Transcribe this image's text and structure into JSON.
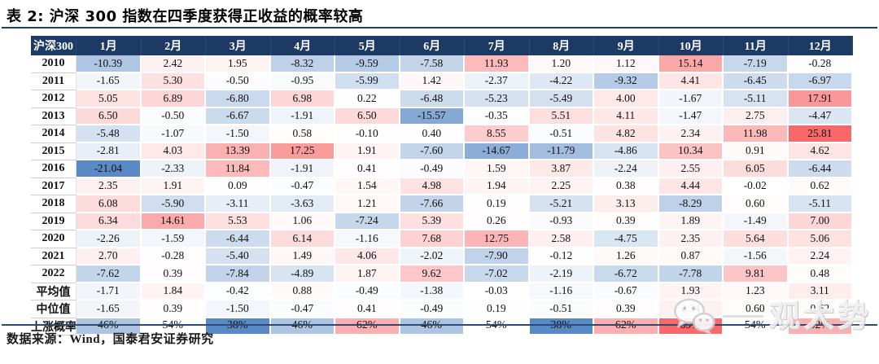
{
  "title": "表 2: 沪深 300 指数在四季度获得正收益的概率较高",
  "chart_data": {
    "type": "heatmap",
    "title": "表 2: 沪深 300 指数在四季度获得正收益的概率较高",
    "corner_label": "沪深300",
    "columns": [
      "1月",
      "2月",
      "3月",
      "4月",
      "5月",
      "6月",
      "7月",
      "8月",
      "9月",
      "10月",
      "11月",
      "12月"
    ],
    "rows": [
      {
        "label": "2010",
        "values": [
          -10.39,
          2.42,
          1.95,
          -8.32,
          -9.59,
          -7.58,
          11.93,
          1.2,
          1.12,
          15.14,
          -7.19,
          -0.28
        ]
      },
      {
        "label": "2011",
        "values": [
          -1.65,
          5.3,
          -0.5,
          -0.95,
          -5.99,
          1.42,
          -2.37,
          -4.22,
          -9.32,
          4.41,
          -6.45,
          -6.97
        ]
      },
      {
        "label": "2012",
        "values": [
          5.05,
          6.89,
          -6.8,
          6.98,
          0.22,
          -6.48,
          -5.23,
          -5.49,
          4.0,
          -1.67,
          -5.11,
          17.91
        ]
      },
      {
        "label": "2013",
        "values": [
          6.5,
          -0.5,
          -6.67,
          -1.91,
          6.5,
          -15.57,
          -0.35,
          5.51,
          4.11,
          -1.47,
          2.75,
          -4.47
        ]
      },
      {
        "label": "2014",
        "values": [
          -5.48,
          -1.07,
          -1.5,
          0.58,
          -0.1,
          0.4,
          8.55,
          -0.51,
          4.82,
          2.34,
          11.98,
          25.81
        ]
      },
      {
        "label": "2015",
        "values": [
          -2.81,
          4.03,
          13.39,
          17.25,
          1.91,
          -7.6,
          -14.67,
          -11.79,
          -4.86,
          10.34,
          0.91,
          4.62
        ]
      },
      {
        "label": "2016",
        "values": [
          -21.04,
          -2.33,
          11.84,
          -1.91,
          0.41,
          -0.49,
          1.59,
          3.87,
          -2.24,
          2.55,
          6.05,
          -6.44
        ]
      },
      {
        "label": "2017",
        "values": [
          2.35,
          1.91,
          0.09,
          -0.47,
          1.54,
          4.98,
          1.94,
          2.25,
          0.38,
          4.44,
          -0.02,
          0.62
        ]
      },
      {
        "label": "2018",
        "values": [
          6.08,
          -5.9,
          -3.11,
          -3.63,
          1.21,
          -7.66,
          0.19,
          -5.21,
          3.13,
          -8.29,
          0.6,
          -5.11
        ]
      },
      {
        "label": "2019",
        "values": [
          6.34,
          14.61,
          5.53,
          1.06,
          -7.24,
          5.39,
          0.26,
          -0.93,
          0.39,
          1.89,
          -1.49,
          7.0
        ]
      },
      {
        "label": "2020",
        "values": [
          -2.26,
          -1.59,
          -6.44,
          6.14,
          -1.16,
          7.68,
          12.75,
          2.58,
          -4.75,
          2.35,
          5.64,
          5.06
        ]
      },
      {
        "label": "2021",
        "values": [
          2.7,
          -0.28,
          -5.4,
          1.49,
          4.06,
          -2.02,
          -7.9,
          -0.12,
          1.26,
          0.87,
          -1.56,
          2.24
        ]
      },
      {
        "label": "2022",
        "values": [
          -7.62,
          0.39,
          -7.84,
          -4.89,
          1.87,
          9.62,
          -7.02,
          -2.19,
          -6.72,
          -7.78,
          9.81,
          0.48
        ]
      },
      {
        "label": "平均值",
        "values": [
          -1.71,
          1.84,
          -0.42,
          0.88,
          -0.49,
          -1.38,
          -0.03,
          -1.16,
          -0.67,
          1.93,
          1.23,
          3.11
        ]
      },
      {
        "label": "中位值",
        "values": [
          -1.65,
          0.39,
          -1.5,
          -0.47,
          0.41,
          -0.49,
          0.19,
          -0.51,
          0.39,
          2.34,
          0.6,
          0.62
        ]
      },
      {
        "label": "上涨概率",
        "values": [
          "46%",
          "54%",
          "38%",
          "46%",
          "62%",
          "46%",
          "54%",
          "38%",
          "62%",
          "69%",
          "54%",
          "62%"
        ]
      }
    ],
    "layout_hints": {
      "value_unit": "%",
      "color_low": "#5a8ac6",
      "color_mid": "#ffffff",
      "color_high": "#f8696b",
      "value_range": [
        -21.04,
        25.81
      ],
      "percent_range": [
        38,
        69
      ],
      "percent_mid": 54
    }
  },
  "footer": {
    "source_label": "数据来源：Wind，国泰君安证券研究"
  },
  "watermark": {
    "icon": "wechat-icon",
    "text": "观大势"
  },
  "colors": {
    "header_bg": "#1c3a64",
    "rule": "#1f4068",
    "header_text": "#ffffff"
  }
}
